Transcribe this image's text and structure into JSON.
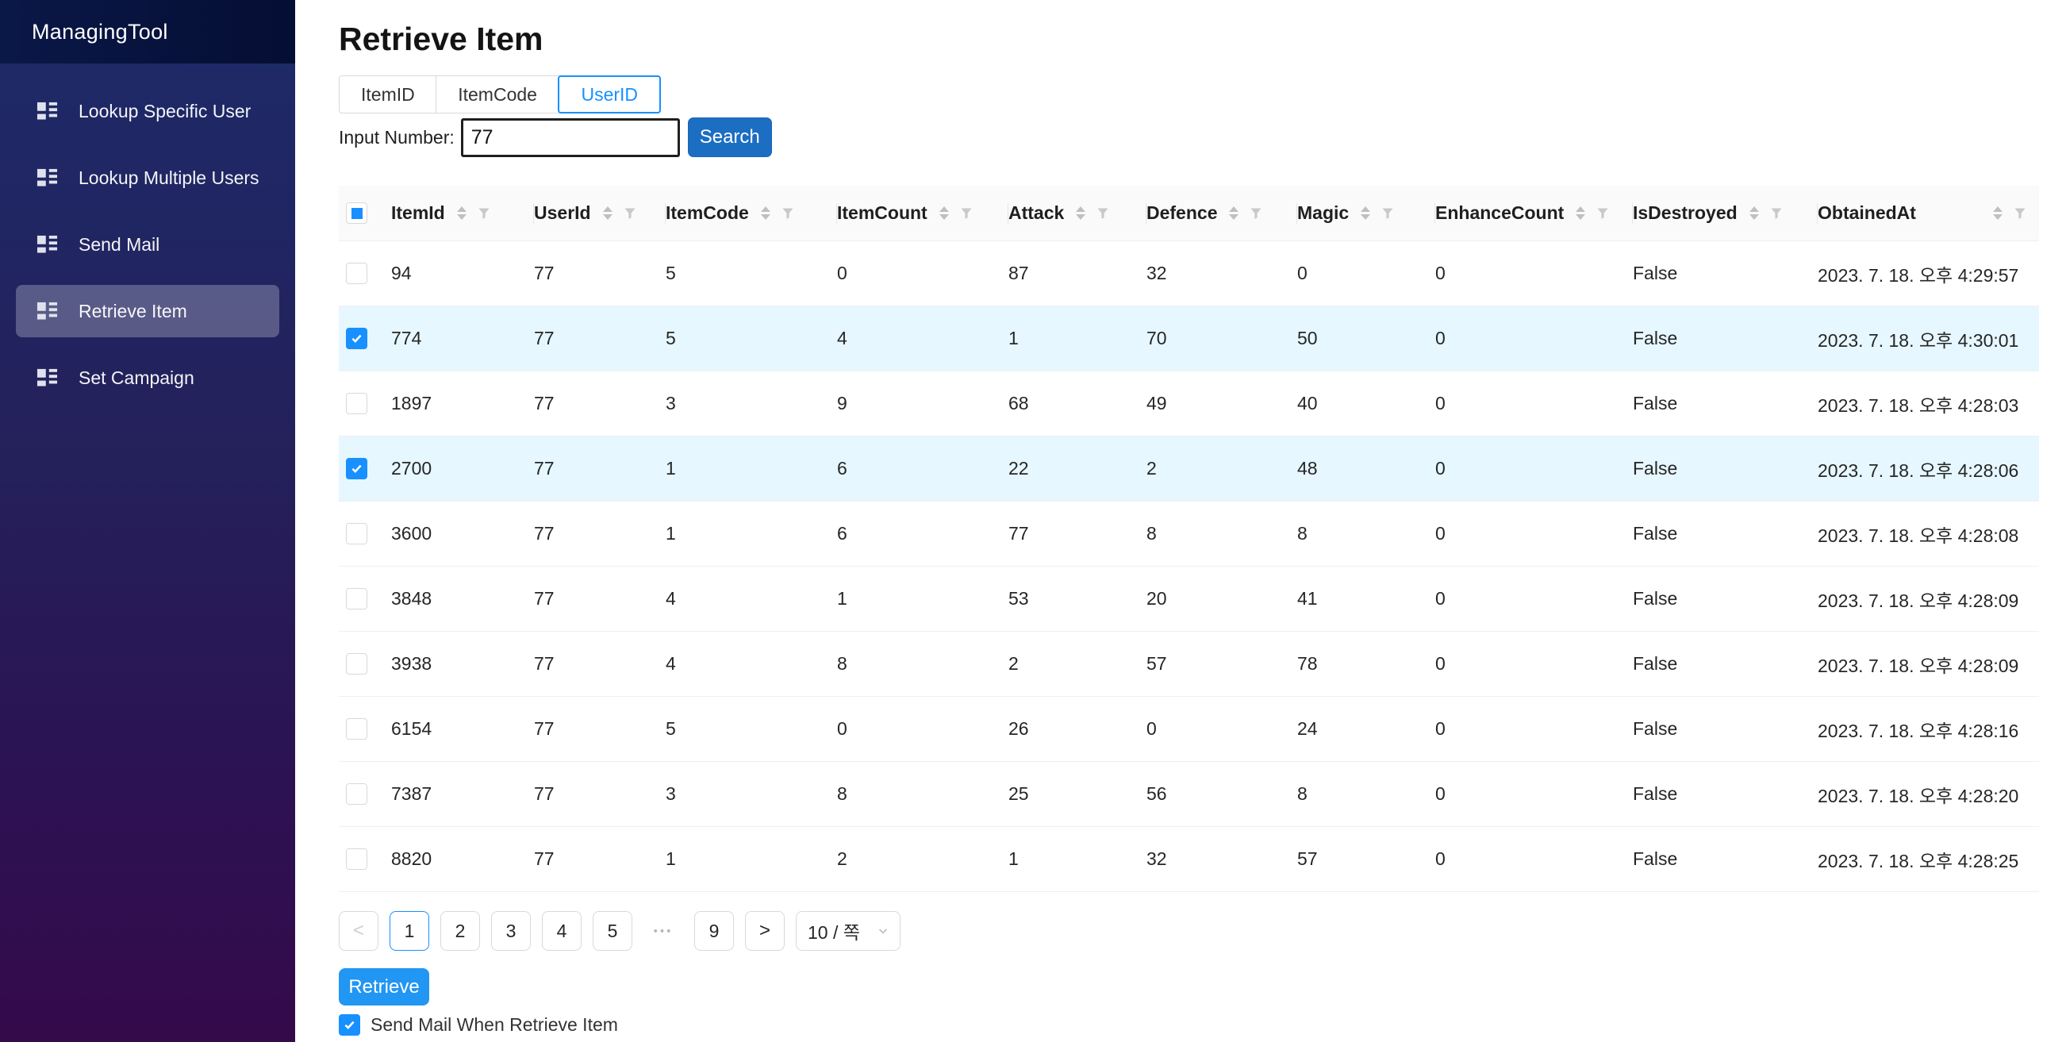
{
  "sidebar": {
    "app_title": "ManagingTool",
    "items": [
      {
        "label": "Lookup Specific User",
        "selected": false
      },
      {
        "label": "Lookup Multiple Users",
        "selected": false
      },
      {
        "label": "Send Mail",
        "selected": false
      },
      {
        "label": "Retrieve Item",
        "selected": true
      },
      {
        "label": "Set Campaign",
        "selected": false
      }
    ]
  },
  "main": {
    "page_title": "Retrieve Item",
    "tabs": [
      {
        "label": "ItemID",
        "selected": false
      },
      {
        "label": "ItemCode",
        "selected": false
      },
      {
        "label": "UserID",
        "selected": true
      }
    ],
    "search": {
      "label": "Input Number:",
      "value": "77",
      "button_label": "Search"
    }
  },
  "table": {
    "columns": [
      "ItemId",
      "UserId",
      "ItemCode",
      "ItemCount",
      "Attack",
      "Defence",
      "Magic",
      "EnhanceCount",
      "IsDestroyed",
      "ObtainedAt"
    ],
    "header_checkbox_state": "indeterminate",
    "rows": [
      {
        "checked": false,
        "cells": [
          "94",
          "77",
          "5",
          "0",
          "87",
          "32",
          "0",
          "0",
          "False",
          "2023. 7. 18. 오후 4:29:57"
        ]
      },
      {
        "checked": true,
        "cells": [
          "774",
          "77",
          "5",
          "4",
          "1",
          "70",
          "50",
          "0",
          "False",
          "2023. 7. 18. 오후 4:30:01"
        ]
      },
      {
        "checked": false,
        "cells": [
          "1897",
          "77",
          "3",
          "9",
          "68",
          "49",
          "40",
          "0",
          "False",
          "2023. 7. 18. 오후 4:28:03"
        ]
      },
      {
        "checked": true,
        "cells": [
          "2700",
          "77",
          "1",
          "6",
          "22",
          "2",
          "48",
          "0",
          "False",
          "2023. 7. 18. 오후 4:28:06"
        ]
      },
      {
        "checked": false,
        "cells": [
          "3600",
          "77",
          "1",
          "6",
          "77",
          "8",
          "8",
          "0",
          "False",
          "2023. 7. 18. 오후 4:28:08"
        ]
      },
      {
        "checked": false,
        "cells": [
          "3848",
          "77",
          "4",
          "1",
          "53",
          "20",
          "41",
          "0",
          "False",
          "2023. 7. 18. 오후 4:28:09"
        ]
      },
      {
        "checked": false,
        "cells": [
          "3938",
          "77",
          "4",
          "8",
          "2",
          "57",
          "78",
          "0",
          "False",
          "2023. 7. 18. 오후 4:28:09"
        ]
      },
      {
        "checked": false,
        "cells": [
          "6154",
          "77",
          "5",
          "0",
          "26",
          "0",
          "24",
          "0",
          "False",
          "2023. 7. 18. 오후 4:28:16"
        ]
      },
      {
        "checked": false,
        "cells": [
          "7387",
          "77",
          "3",
          "8",
          "25",
          "56",
          "8",
          "0",
          "False",
          "2023. 7. 18. 오후 4:28:20"
        ]
      },
      {
        "checked": false,
        "cells": [
          "8820",
          "77",
          "1",
          "2",
          "1",
          "32",
          "57",
          "0",
          "False",
          "2023. 7. 18. 오후 4:28:25"
        ]
      }
    ]
  },
  "pagination": {
    "prev_label": "<",
    "next_label": ">",
    "pages": [
      "1",
      "2",
      "3",
      "4",
      "5"
    ],
    "ellipsis": "•••",
    "last_page": "9",
    "active_page": "1",
    "page_size_label": "10 / 쪽"
  },
  "footer": {
    "retrieve_button": "Retrieve",
    "send_mail_label": "Send Mail When Retrieve Item",
    "send_mail_checked": true
  },
  "colors": {
    "accent_blue": "#1890ff",
    "search_button_blue": "#1c6ec3",
    "retrieve_button_blue": "#2196f3",
    "selected_row_bg": "#e6f7ff",
    "sidebar_top": "#1d2b69",
    "sidebar_bottom": "#340a4b",
    "sidebar_header_bg": "#081540"
  }
}
